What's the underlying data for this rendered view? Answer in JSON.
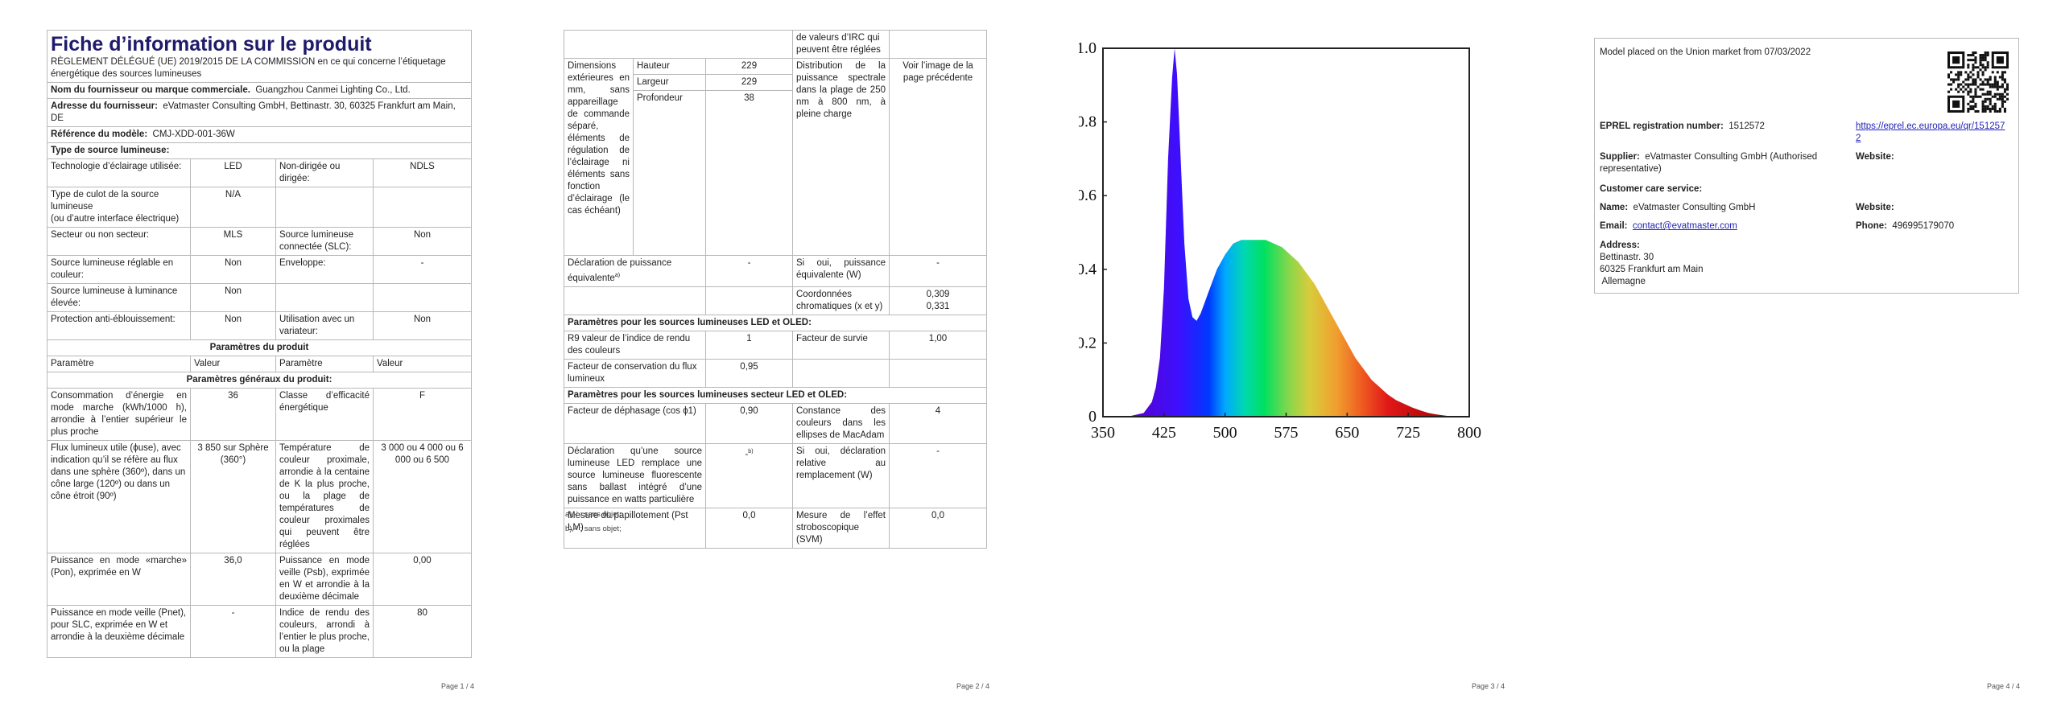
{
  "page1": {
    "title": "Fiche d’information sur le produit",
    "regulation": "RÈGLEMENT DÉLÉGUÉ (UE) 2019/2015 DE LA COMMISSION en ce qui concerne l’étiquetage énergétique des sources lumineuses",
    "supplier_label": "Nom du fournisseur ou marque commerciale.",
    "supplier_value": "Guangzhou Canmei Lighting Co., Ltd.",
    "address_label": "Adresse du fournisseur:",
    "address_value": "eVatmaster Consulting GmbH, Bettinastr. 30, 60325 Frankfurt am Main, DE",
    "model_label": "Référence du modèle:",
    "model_value": "CMJ-XDD-001-36W",
    "type_label": "Type de source lumineuse:",
    "rows_type": [
      {
        "a": "Technologie d’éclairage utilisée:",
        "b": "LED",
        "c": "Non-dirigée ou dirigée:",
        "d": "NDLS"
      },
      {
        "a": "Type de culot de la source lumineuse\n(ou d’autre interface électrique)",
        "b": "N/A",
        "c": "",
        "d": ""
      },
      {
        "a": "Secteur ou non secteur:",
        "b": "MLS",
        "c": "Source lumineuse connectée (SLC):",
        "d": "Non"
      },
      {
        "a": "Source lumineuse réglable en couleur:",
        "b": "Non",
        "c": "Enveloppe:",
        "d": "-"
      },
      {
        "a": "Source lumineuse à luminance élevée:",
        "b": "Non",
        "c": "",
        "d": ""
      },
      {
        "a": "Protection anti-éblouissement:",
        "b": "Non",
        "c": "Utilisation avec un variateur:",
        "d": "Non"
      }
    ],
    "params_product": "Paramètres du produit",
    "col_headers": [
      "Paramètre",
      "Valeur",
      "Paramètre",
      "Valeur"
    ],
    "params_general": "Paramètres généraux du produit:",
    "rows_general": [
      {
        "a": "Consommation d’énergie en mode marche (kWh/1000 h), arrondie à l’entier supérieur le plus proche",
        "b": "36",
        "c": "Classe d’efficacité énergétique",
        "d": "F"
      },
      {
        "a": "Flux lumineux utile (ϕuse), avec indication qu’il se réfère au flux dans une sphère (360º), dans un cône large (120º) ou dans un cône étroit (90º)",
        "b": "3 850 sur Sphère (360°)",
        "c": "Température de couleur proximale, arrondie à la centaine de K la plus proche, ou la plage de températures de couleur proximales qui peuvent être réglées",
        "d": "3 000 ou 4 000 ou 6 000 ou 6 500"
      },
      {
        "a": "Puissance en mode «marche» (Pon), exprimée en W",
        "b": "36,0",
        "c": "Puissance en mode veille (Psb), exprimée en W et arrondie à la deuxième décimale",
        "d": "0,00"
      },
      {
        "a": "Puissance en mode veille (Pnet), pour SLC, exprimée en W et arrondie à la deuxième décimale",
        "b": "-",
        "c": "Indice de rendu des couleurs, arrondi à l’entier le plus proche, ou la plage",
        "d": "80"
      }
    ],
    "page_num": "Page 1 / 4"
  },
  "page2": {
    "top_cont": "de valeurs d’IRC qui peuvent être réglées",
    "dims_label": "Dimensions extérieures en mm, sans appareillage de commande séparé, éléments de régulation de l’éclairage ni éléments sans fonction d’éclairage (le cas échéant)",
    "dims": [
      {
        "name": "Hauteur",
        "value": "229"
      },
      {
        "name": "Largeur",
        "value": "229"
      },
      {
        "name": "Profondeur",
        "value": "38"
      }
    ],
    "spd_label": "Distribution de la puissance spectrale dans la plage de 250 nm à 800 nm, à pleine charge",
    "spd_value": "Voir l’image de la page précédente",
    "equiv_label": "Déclaration de puissance équivalente",
    "equiv_sup": "a)",
    "equiv_value": "-",
    "equiv_w_label": "Si oui, puissance équivalente (W)",
    "equiv_w_value": "-",
    "chroma_label": "Coordonnées chromatiques (x et y)",
    "chroma_value": "0,309\n0,331",
    "led_section": "Paramètres pour les sources lumineuses LED et OLED:",
    "r9_label": "R9 valeur de l’indice de rendu des couleurs",
    "r9_value": "1",
    "survival_label": "Facteur de survie",
    "survival_value": "1,00",
    "maint_label": "Facteur de conservation du flux lumineux",
    "maint_value": "0,95",
    "mains_section": "Paramètres pour les sources lumineuses secteur LED et OLED:",
    "pf_label": "Facteur de déphasage (cos ϕ1)",
    "pf_value": "0,90",
    "macadam_label": "Constance des couleurs dans les ellipses de MacAdam",
    "macadam_value": "4",
    "replace_label": "Déclaration qu’une source lumineuse LED remplace une source lumineuse fluorescente sans ballast intégré d’une puissance en watts particulière",
    "replace_value": "-",
    "replace_sup": "b)",
    "replace_w_label": "Si oui, déclaration relative au remplacement (W)",
    "replace_w_value": "-",
    "flicker_label": "Mesure du papillotement (Pst LM)",
    "flicker_value": "0,0",
    "strobo_label": "Mesure de l’effet stroboscopique (SVM)",
    "strobo_value": "0,0",
    "note_a": "a)‚-‘ : sans objet;",
    "note_b": "b)‚-‘ : sans objet;",
    "page_num": "Page 2 / 4"
  },
  "page3": {
    "page_num": "Page 3 / 4"
  },
  "chart_data": {
    "type": "area",
    "xlabel": "",
    "ylabel": "",
    "xlim": [
      350,
      800
    ],
    "ylim": [
      0,
      1.0
    ],
    "x_ticks": [
      350,
      425,
      500,
      575,
      650,
      725,
      800
    ],
    "y_ticks": [
      "0",
      "0.2",
      "0.4",
      "0.6",
      "0.8",
      "1.0"
    ],
    "x": [
      380,
      390,
      400,
      410,
      415,
      420,
      425,
      430,
      435,
      438,
      441,
      444,
      447,
      450,
      455,
      460,
      465,
      470,
      475,
      480,
      490,
      500,
      510,
      520,
      530,
      540,
      550,
      560,
      570,
      580,
      590,
      600,
      610,
      620,
      630,
      640,
      650,
      660,
      670,
      680,
      690,
      700,
      710,
      720,
      730,
      740,
      750,
      760,
      770,
      780
    ],
    "y": [
      0.0,
      0.005,
      0.01,
      0.04,
      0.08,
      0.16,
      0.35,
      0.7,
      0.92,
      1.0,
      0.93,
      0.78,
      0.62,
      0.47,
      0.32,
      0.27,
      0.26,
      0.28,
      0.31,
      0.34,
      0.4,
      0.44,
      0.47,
      0.48,
      0.48,
      0.48,
      0.48,
      0.47,
      0.46,
      0.44,
      0.42,
      0.39,
      0.36,
      0.32,
      0.28,
      0.24,
      0.2,
      0.16,
      0.13,
      0.1,
      0.08,
      0.06,
      0.045,
      0.035,
      0.025,
      0.017,
      0.01,
      0.006,
      0.003,
      0.0
    ],
    "grid": false
  },
  "page4": {
    "placed": "Model placed on the Union market from 07/03/2022",
    "eprel_label": "EPREL registration number:",
    "eprel_value": "1512572",
    "eprel_link": "https://eprel.ec.europa.eu/qr/1512572",
    "supplier_label": "Supplier:",
    "supplier_value": "eVatmaster Consulting GmbH (Authorised representative)",
    "website_label": "Website:",
    "care_label": "Customer care service:",
    "name_label": "Name:",
    "name_value": "eVatmaster Consulting GmbH",
    "website2_label": "Website:",
    "email_label": "Email:",
    "email_value": "contact@evatmaster.com",
    "phone_label": "Phone:",
    "phone_value": "496995179070",
    "address_label": "Address:",
    "address_lines": [
      "Bettinastr. 30",
      "60325 Frankfurt am Main",
      " Allemagne"
    ],
    "page_num": "Page 4 / 4"
  }
}
